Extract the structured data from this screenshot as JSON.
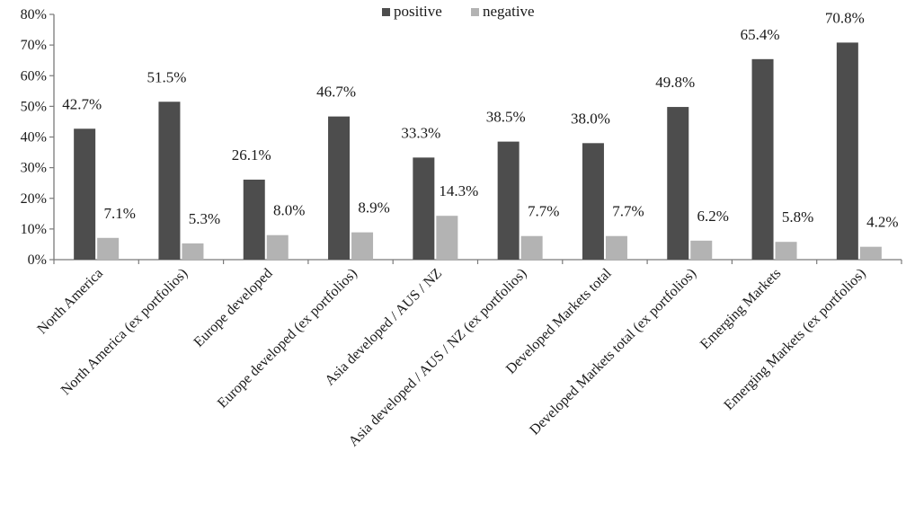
{
  "chart_data": {
    "type": "bar",
    "categories": [
      "North America",
      "North America (ex portfolios)",
      "Europe developed",
      "Europe developed (ex portfolios)",
      "Asia developed / AUS / NZ",
      "Asia developed / AUS / NZ (ex portfolios)",
      "Developed Markets total",
      "Developed Markets total (ex portfolios)",
      "Emerging Markets",
      "Emerging Markets (ex portfolios)"
    ],
    "series": [
      {
        "name": "positive",
        "color": "#4d4d4d",
        "values": [
          42.7,
          51.5,
          26.1,
          46.7,
          33.3,
          38.5,
          38.0,
          49.8,
          65.4,
          70.8
        ],
        "labels": [
          "42.7%",
          "51.5%",
          "26.1%",
          "46.7%",
          "33.3%",
          "38.5%",
          "38.0%",
          "49.8%",
          "65.4%",
          "70.8%"
        ]
      },
      {
        "name": "negative",
        "color": "#b3b3b3",
        "values": [
          7.1,
          5.3,
          8.0,
          8.9,
          14.3,
          7.7,
          7.7,
          6.2,
          5.8,
          4.2
        ],
        "labels": [
          "7.1%",
          "5.3%",
          "8.0%",
          "8.9%",
          "14.3%",
          "7.7%",
          "7.7%",
          "6.2%",
          "5.8%",
          "4.2%"
        ]
      }
    ],
    "y_ticks": [
      "0%",
      "10%",
      "20%",
      "30%",
      "40%",
      "50%",
      "60%",
      "70%",
      "80%"
    ],
    "ylim": [
      0,
      80
    ],
    "grid": false,
    "legend_position": "top-center"
  }
}
